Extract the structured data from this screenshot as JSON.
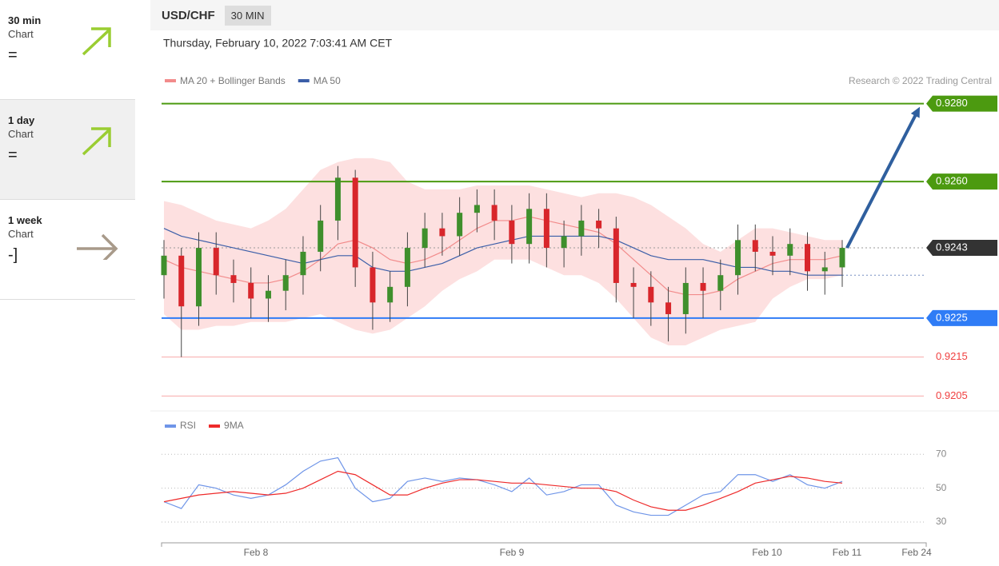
{
  "sidebar": [
    {
      "period": "30 min",
      "label": "Chart",
      "signal": "="
    },
    {
      "period": "1 day",
      "label": "Chart",
      "signal": "="
    },
    {
      "period": "1 week",
      "label": "Chart",
      "signal": "-]"
    }
  ],
  "header": {
    "symbol": "USD/CHF",
    "interval": "30 MIN",
    "timestamp": "Thursday, February 10, 2022 7:03:41 AM CET",
    "credit": "Research © 2022 Trading Central"
  },
  "chart_data": [
    {
      "type": "candlestick",
      "open": [
        0.9236,
        0.9241,
        0.9228,
        0.9243,
        0.9236,
        0.9234,
        0.923,
        0.9232,
        0.9236,
        0.9242,
        0.925,
        0.9261,
        0.9238,
        0.9229,
        0.9233,
        0.9243,
        0.9248,
        0.9246,
        0.9252,
        0.9254,
        0.925,
        0.9244,
        0.9253,
        0.9243,
        0.9246,
        0.925,
        0.9248,
        0.9234,
        0.9233,
        0.9229,
        0.9226,
        0.9234,
        0.9232,
        0.9236,
        0.9245,
        0.9242,
        0.9241,
        0.9244,
        0.9237,
        0.9238
      ],
      "high": [
        0.9245,
        0.9243,
        0.9247,
        0.9247,
        0.924,
        0.9238,
        0.9236,
        0.924,
        0.9246,
        0.9254,
        0.9264,
        0.9263,
        0.9242,
        0.9237,
        0.9247,
        0.9252,
        0.9252,
        0.9256,
        0.9258,
        0.9258,
        0.9254,
        0.9257,
        0.9257,
        0.925,
        0.9254,
        0.9253,
        0.9251,
        0.9238,
        0.9237,
        0.9233,
        0.9238,
        0.9238,
        0.924,
        0.9249,
        0.9249,
        0.9246,
        0.9248,
        0.9247,
        0.9242,
        0.9245
      ],
      "low": [
        0.923,
        0.9215,
        0.9223,
        0.9231,
        0.9229,
        0.9225,
        0.9224,
        0.9227,
        0.9231,
        0.9237,
        0.9245,
        0.9233,
        0.9222,
        0.9224,
        0.9228,
        0.9238,
        0.9241,
        0.9241,
        0.9247,
        0.9245,
        0.9239,
        0.9239,
        0.9238,
        0.9238,
        0.9241,
        0.9243,
        0.9229,
        0.9225,
        0.9223,
        0.9219,
        0.9221,
        0.9225,
        0.9227,
        0.9231,
        0.9237,
        0.9236,
        0.9236,
        0.9232,
        0.9231,
        0.9233
      ],
      "close": [
        0.9241,
        0.9228,
        0.9243,
        0.9236,
        0.9234,
        0.923,
        0.9232,
        0.9236,
        0.9242,
        0.925,
        0.9261,
        0.9238,
        0.9229,
        0.9233,
        0.9243,
        0.9248,
        0.9246,
        0.9252,
        0.9254,
        0.925,
        0.9244,
        0.9253,
        0.9243,
        0.9246,
        0.925,
        0.9248,
        0.9234,
        0.9233,
        0.9229,
        0.9226,
        0.9234,
        0.9232,
        0.9236,
        0.9245,
        0.9242,
        0.9241,
        0.9244,
        0.9237,
        0.9238,
        0.9243
      ],
      "up_color": "#3f8f2c",
      "down_color": "#d8262b",
      "overlays": [
        {
          "name": "MA 20 + Bollinger Bands",
          "color": "#f28b8b",
          "band_color": "#fde0e0",
          "values": [
            0.924,
            0.9238,
            0.9237,
            0.9236,
            0.9235,
            0.9234,
            0.9234,
            0.9235,
            0.9237,
            0.924,
            0.9244,
            0.9245,
            0.9243,
            0.924,
            0.9239,
            0.924,
            0.9242,
            0.9245,
            0.9248,
            0.925,
            0.925,
            0.9251,
            0.925,
            0.9249,
            0.9248,
            0.9247,
            0.9244,
            0.924,
            0.9236,
            0.9232,
            0.9231,
            0.9231,
            0.9232,
            0.9235,
            0.9237,
            0.9239,
            0.924,
            0.924,
            0.924,
            0.9241
          ],
          "upper": [
            0.9255,
            0.9254,
            0.9252,
            0.925,
            0.9249,
            0.9248,
            0.925,
            0.9253,
            0.9258,
            0.9263,
            0.9265,
            0.9266,
            0.9266,
            0.9265,
            0.926,
            0.9258,
            0.9258,
            0.9258,
            0.9259,
            0.9259,
            0.9259,
            0.9259,
            0.9258,
            0.9257,
            0.9256,
            0.9257,
            0.9257,
            0.9256,
            0.9254,
            0.9251,
            0.9248,
            0.9244,
            0.9242,
            0.9245,
            0.9248,
            0.9248,
            0.9247,
            0.9246,
            0.9245,
            0.9245
          ],
          "lower": [
            0.9226,
            0.9222,
            0.9222,
            0.9223,
            0.9223,
            0.9224,
            0.9224,
            0.9224,
            0.9225,
            0.9226,
            0.9224,
            0.9222,
            0.9221,
            0.9222,
            0.9225,
            0.9228,
            0.9232,
            0.9235,
            0.9237,
            0.924,
            0.924,
            0.924,
            0.9238,
            0.9236,
            0.9236,
            0.9234,
            0.923,
            0.9225,
            0.922,
            0.9218,
            0.9218,
            0.922,
            0.9222,
            0.9223,
            0.9224,
            0.923,
            0.9233,
            0.9235,
            0.9235,
            0.9236
          ]
        },
        {
          "name": "MA 50",
          "color": "#3b5ea8",
          "values": [
            0.9248,
            0.9246,
            0.9245,
            0.9244,
            0.9243,
            0.9242,
            0.9241,
            0.924,
            0.9239,
            0.924,
            0.9241,
            0.9241,
            0.9238,
            0.9237,
            0.9237,
            0.9238,
            0.9239,
            0.9241,
            0.9243,
            0.9244,
            0.9245,
            0.9246,
            0.9246,
            0.9246,
            0.9246,
            0.9246,
            0.9245,
            0.9243,
            0.9241,
            0.924,
            0.924,
            0.924,
            0.9239,
            0.9238,
            0.9238,
            0.9237,
            0.9237,
            0.9236,
            0.9236,
            0.9236
          ]
        }
      ],
      "levels": [
        {
          "value": 0.928,
          "label": "0.9280",
          "color": "#4c9a10",
          "style": "box",
          "line": "solid"
        },
        {
          "value": 0.926,
          "label": "0.9260",
          "color": "#4c9a10",
          "style": "box",
          "line": "solid"
        },
        {
          "value": 0.9243,
          "label": "0.9243",
          "color": "#333333",
          "style": "box",
          "line": "dotted"
        },
        {
          "value": 0.9225,
          "label": "0.9225",
          "color": "#2f7cf6",
          "style": "box",
          "line": "solid"
        },
        {
          "value": 0.9215,
          "label": "0.9215",
          "color": "#f04040",
          "style": "text",
          "line": "solid"
        },
        {
          "value": 0.9205,
          "label": "0.9205",
          "color": "#f04040",
          "style": "text",
          "line": "solid"
        }
      ],
      "ylim": [
        0.9202,
        0.9283
      ]
    },
    {
      "type": "line",
      "series": [
        {
          "name": "RSI",
          "color": "#6f95e8",
          "values": [
            42,
            38,
            52,
            50,
            46,
            44,
            46,
            52,
            60,
            66,
            68,
            50,
            42,
            44,
            54,
            56,
            54,
            56,
            55,
            52,
            48,
            56,
            46,
            48,
            52,
            52,
            40,
            36,
            34,
            34,
            40,
            46,
            48,
            58,
            58,
            54,
            58,
            52,
            50,
            54
          ]
        },
        {
          "name": "9MA",
          "color": "#ee2a2a",
          "values": [
            42,
            44,
            46,
            47,
            48,
            47,
            46,
            47,
            50,
            55,
            60,
            58,
            52,
            46,
            46,
            50,
            53,
            55,
            55,
            54,
            53,
            53,
            52,
            51,
            50,
            50,
            48,
            43,
            39,
            37,
            37,
            40,
            44,
            48,
            53,
            55,
            57,
            56,
            54,
            53
          ]
        }
      ],
      "ylim": [
        22,
        81
      ],
      "yticks": [
        30,
        50,
        70
      ],
      "x_labels": [
        "Feb 8",
        "Feb 9",
        "Feb 10",
        "Feb 11",
        "Feb 24"
      ]
    }
  ]
}
